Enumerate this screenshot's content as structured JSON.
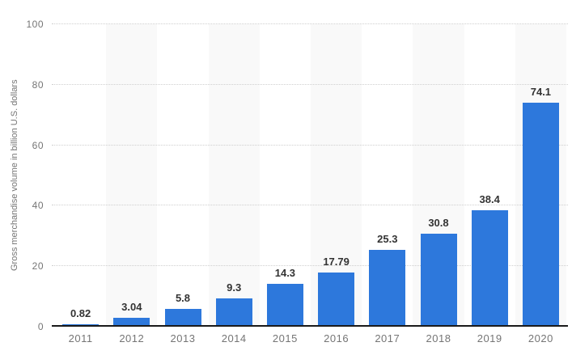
{
  "chart_data": {
    "type": "bar",
    "title": "",
    "categories": [
      "2011",
      "2012",
      "2013",
      "2014",
      "2015",
      "2016",
      "2017",
      "2018",
      "2019",
      "2020"
    ],
    "values": [
      0.82,
      3.04,
      5.8,
      9.3,
      14.3,
      17.79,
      25.3,
      30.8,
      38.4,
      74.1
    ],
    "value_labels": [
      "0.82",
      "3.04",
      "5.8",
      "9.3",
      "14.3",
      "17.79",
      "25.3",
      "30.8",
      "38.4",
      "74.1"
    ],
    "xlabel": "",
    "ylabel": "Gross merchandise volume in billion U.S. dollars",
    "yticks": [
      0,
      20,
      40,
      60,
      80,
      100
    ],
    "ylim": [
      0,
      100
    ],
    "grid": "horizontal-dotted",
    "legend": "none",
    "colors": {
      "bar": "#2d78dc",
      "plot_band": "#f9f9f9",
      "gridline": "#cfcfcf",
      "axis_line": "#1a1a1a",
      "value_label": "#333333",
      "axis_label": "#757575",
      "background": "#ffffff"
    }
  }
}
